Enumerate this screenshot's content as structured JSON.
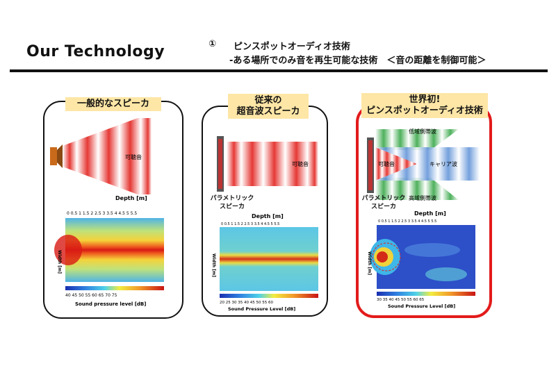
{
  "header": {
    "title": "Our Technology",
    "number": "①",
    "subtitle_line1": "ピンスポットオーディオ技術",
    "subtitle_line2": "-ある場所でのみ音を再生可能な技術　＜音の距離を制御可能＞"
  },
  "panels": [
    {
      "heading": "一般的なスピーカ",
      "audible_label": "可聴音",
      "axis_top": "Depth [m]",
      "axis_side": "Width [m]",
      "axis_bottom": "Sound pressure level [dB]",
      "colorbar_ticks": [
        "40",
        "45",
        "50",
        "55",
        "60",
        "65",
        "70",
        "75"
      ]
    },
    {
      "heading_line1": "従来の",
      "heading_line2": "超音波スピーカ",
      "audible_label": "可聴音",
      "speaker_label_line1": "パラメトリック",
      "speaker_label_line2": "スピーカ",
      "axis_top": "Depth [m]",
      "axis_side": "Width [m]",
      "axis_bottom": "Sound Pressure Level [dB]",
      "colorbar_ticks": [
        "20",
        "25",
        "30",
        "35",
        "40",
        "45",
        "50",
        "55",
        "60"
      ]
    },
    {
      "heading_line1": "世界初!",
      "heading_line2": "ピンスポットオーディオ技術",
      "lower_sideband": "低域側帯波",
      "upper_sideband": "高域側帯波",
      "carrier": "キャリア波",
      "audible_label": "可聴音",
      "speaker_label_line1": "パラメトリック",
      "speaker_label_line2": "スピーカ",
      "axis_top": "Depth [m]",
      "axis_side": "Width [m]",
      "axis_bottom": "Sound Pressure Level [dB]",
      "colorbar_ticks": [
        "30",
        "35",
        "40",
        "45",
        "50",
        "55",
        "60",
        "65"
      ]
    }
  ],
  "colors": {
    "accent_red": "#e31b1b",
    "highlight": "#fde6a6"
  }
}
